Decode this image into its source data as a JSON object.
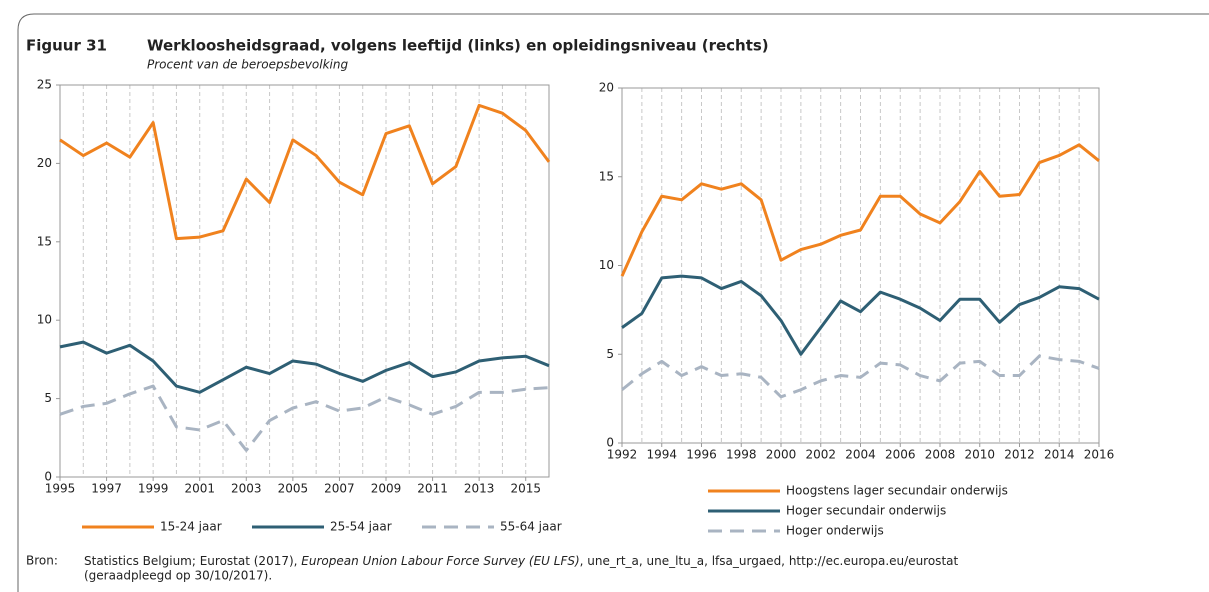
{
  "figure_label": "Figuur 31",
  "title": "Werkloosheidsgraad, volgens leeftijd (links) en opleidingsniveau (rechts)",
  "subtitle": "Procent van de beroepsbevolking",
  "source": {
    "label": "Bron:",
    "parts": [
      "Statistics Belgium; Eurostat (2017), ",
      "European Union Labour Force Survey (EU LFS)",
      ", une_rt_a, une_ltu_a, lfsa_urgaed, http://ec.europa.eu/eurostat"
    ],
    "line2": "(geraadpleegd op 30/10/2017)."
  },
  "chart_data": [
    {
      "type": "line",
      "x": [
        1995,
        1996,
        1997,
        1998,
        1999,
        2000,
        2001,
        2002,
        2003,
        2004,
        2005,
        2006,
        2007,
        2008,
        2009,
        2010,
        2011,
        2012,
        2013,
        2014,
        2015,
        2016
      ],
      "xlim": [
        1995,
        2016
      ],
      "xticks": [
        1995,
        1997,
        1999,
        2001,
        2003,
        2005,
        2007,
        2009,
        2011,
        2013,
        2015
      ],
      "ylim": [
        0,
        25
      ],
      "yticks": [
        0,
        5,
        10,
        15,
        20,
        25
      ],
      "grid": true,
      "legend": "bottom",
      "series": [
        {
          "name": "15-24 jaar",
          "color": "#f0821e",
          "dashed": false,
          "values": [
            21.5,
            20.5,
            21.3,
            20.4,
            22.6,
            15.2,
            15.3,
            15.7,
            19.0,
            17.5,
            21.5,
            20.5,
            18.8,
            18.0,
            21.9,
            22.4,
            18.7,
            19.8,
            23.7,
            23.2,
            22.1,
            20.1
          ]
        },
        {
          "name": "25-54 jaar",
          "color": "#2e5f74",
          "dashed": false,
          "values": [
            8.3,
            8.6,
            7.9,
            8.4,
            7.4,
            5.8,
            5.4,
            6.2,
            7.0,
            6.6,
            7.4,
            7.2,
            6.6,
            6.1,
            6.8,
            7.3,
            6.4,
            6.7,
            7.4,
            7.6,
            7.7,
            7.1
          ]
        },
        {
          "name": "55-64 jaar",
          "color": "#a9b4c2",
          "dashed": true,
          "values": [
            4.0,
            4.5,
            4.7,
            5.3,
            5.8,
            3.2,
            3.0,
            3.6,
            1.7,
            3.6,
            4.4,
            4.8,
            4.2,
            4.4,
            5.1,
            4.6,
            4.0,
            4.5,
            5.4,
            5.4,
            5.6,
            5.7
          ]
        }
      ]
    },
    {
      "type": "line",
      "x": [
        1992,
        1993,
        1994,
        1995,
        1996,
        1997,
        1998,
        1999,
        2000,
        2001,
        2002,
        2003,
        2004,
        2005,
        2006,
        2007,
        2008,
        2009,
        2010,
        2011,
        2012,
        2013,
        2014,
        2015,
        2016
      ],
      "xlim": [
        1992,
        2016
      ],
      "xticks": [
        1992,
        1994,
        1996,
        1998,
        2000,
        2002,
        2004,
        2006,
        2008,
        2010,
        2012,
        2014,
        2016
      ],
      "ylim": [
        0,
        20
      ],
      "yticks": [
        0,
        5,
        10,
        15,
        20
      ],
      "grid": true,
      "legend": "bottom",
      "series": [
        {
          "name": "Hoogstens lager secundair onderwijs",
          "color": "#f0821e",
          "dashed": false,
          "values": [
            9.4,
            11.9,
            13.9,
            13.7,
            14.6,
            14.3,
            14.6,
            13.7,
            10.3,
            10.9,
            11.2,
            11.7,
            12.0,
            13.9,
            13.9,
            12.9,
            12.4,
            13.6,
            15.3,
            13.9,
            14.0,
            15.8,
            16.2,
            16.8,
            15.9
          ]
        },
        {
          "name": "Hoger secundair onderwijs",
          "color": "#2e5f74",
          "dashed": false,
          "values": [
            6.5,
            7.3,
            9.3,
            9.4,
            9.3,
            8.7,
            9.1,
            8.3,
            6.9,
            5.0,
            6.5,
            8.0,
            7.4,
            8.5,
            8.1,
            7.6,
            6.9,
            8.1,
            8.1,
            6.8,
            7.8,
            8.2,
            8.8,
            8.7,
            8.1
          ]
        },
        {
          "name": "Hoger onderwijs",
          "color": "#a9b4c2",
          "dashed": true,
          "values": [
            3.0,
            3.9,
            4.6,
            3.8,
            4.3,
            3.8,
            3.9,
            3.7,
            2.6,
            3.0,
            3.5,
            3.8,
            3.7,
            4.5,
            4.4,
            3.8,
            3.5,
            4.5,
            4.6,
            3.8,
            3.8,
            4.9,
            4.7,
            4.6,
            4.2
          ]
        }
      ]
    }
  ]
}
